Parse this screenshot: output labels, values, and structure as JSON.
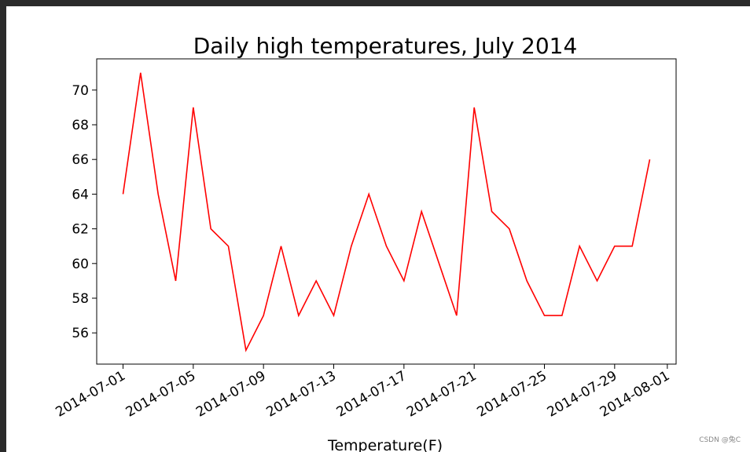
{
  "chart_data": {
    "type": "line",
    "title": "Daily high temperatures, July 2014",
    "xlabel": "Temperature(F)",
    "ylabel": "",
    "x": [
      "2014-07-01",
      "2014-07-02",
      "2014-07-03",
      "2014-07-04",
      "2014-07-05",
      "2014-07-06",
      "2014-07-07",
      "2014-07-08",
      "2014-07-09",
      "2014-07-10",
      "2014-07-11",
      "2014-07-12",
      "2014-07-13",
      "2014-07-14",
      "2014-07-15",
      "2014-07-16",
      "2014-07-17",
      "2014-07-18",
      "2014-07-19",
      "2014-07-20",
      "2014-07-21",
      "2014-07-22",
      "2014-07-23",
      "2014-07-24",
      "2014-07-25",
      "2014-07-26",
      "2014-07-27",
      "2014-07-28",
      "2014-07-29",
      "2014-07-30",
      "2014-07-31"
    ],
    "series": [
      {
        "values": [
          64,
          71,
          64,
          59,
          69,
          62,
          61,
          55,
          57,
          61,
          57,
          59,
          57,
          61,
          64,
          61,
          59,
          63,
          60,
          57,
          69,
          63,
          62,
          59,
          57,
          57,
          61,
          59,
          61,
          61,
          66
        ]
      }
    ],
    "xticks": [
      "2014-07-01",
      "2014-07-05",
      "2014-07-09",
      "2014-07-13",
      "2014-07-17",
      "2014-07-21",
      "2014-07-25",
      "2014-07-29",
      "2014-08-01"
    ],
    "yticks": [
      56,
      58,
      60,
      62,
      64,
      66,
      68,
      70
    ],
    "xlim": [
      "2014-06-29.5",
      "2014-08-01.5"
    ],
    "ylim": [
      54.2,
      71.8
    ],
    "line_color": "#ff0000",
    "grid": false,
    "legend": "none"
  },
  "watermark": "CSDN @兔C"
}
